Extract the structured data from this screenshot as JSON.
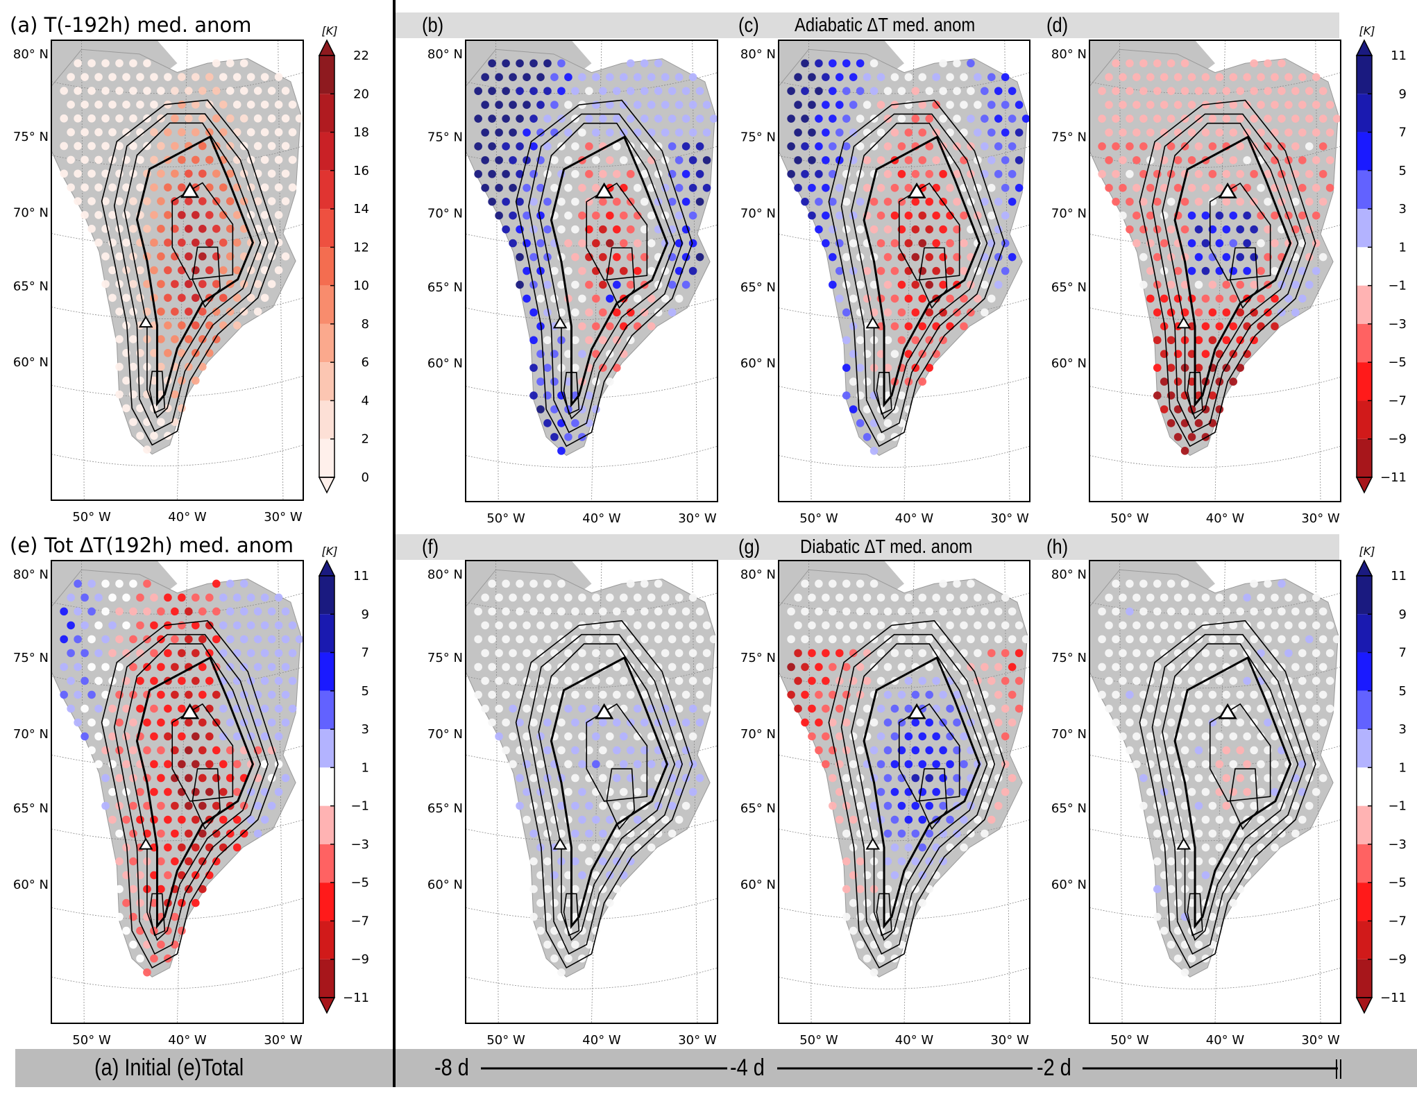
{
  "figure": {
    "row1_header": {
      "panel_b": "(b)",
      "panel_c": "(c)",
      "title": "Adiabatic ΔT med. anom",
      "panel_d": "(d)"
    },
    "row2_header": {
      "panel_f": "(f)",
      "panel_g": "(g)",
      "title": "Diabatic ΔT med. anom",
      "panel_h": "(h)"
    },
    "panel_a_title": "(a)  T(-192h) med. anom",
    "panel_e_title": "(e)  Tot ΔT(192h) med. anom",
    "bottom_left_label": "(a) Initial (e)Total",
    "timeline": {
      "labels": [
        "-8 d",
        "-4 d",
        "-2 d"
      ],
      "end_marker": "||"
    },
    "colors": {
      "land": "#c4c4c4",
      "header_band": "#dcdcdc",
      "bottom_band": "#bbbbbb",
      "marker_fill": "#ffffff"
    }
  },
  "chart_data": [
    {
      "id": "a",
      "type": "scatter",
      "title": "T(-192h) med. anom",
      "panel_label": "(a)",
      "projection": "Greenland polar stereographic",
      "lat_ticks": [
        "80° N",
        "75° N",
        "70° N",
        "65° N",
        "60° N"
      ],
      "lon_ticks": [
        "50° W",
        "40° W",
        "30° W"
      ],
      "colorbar": {
        "unit": "[K]",
        "ticks": [
          "22",
          "20",
          "18",
          "16",
          "14",
          "12",
          "10",
          "8",
          "6",
          "4",
          "2",
          "0"
        ],
        "range": [
          0,
          22
        ],
        "extend": "both",
        "colors": [
          "#fff0eb",
          "#fde0d6",
          "#fcc6b2",
          "#fba98d",
          "#f88c6d",
          "#f46d50",
          "#ee5040",
          "#e03431",
          "#c92126",
          "#b01b20",
          "#8e1a1f"
        ]
      },
      "field": "warm",
      "summit_marker": true,
      "south_marker": true
    },
    {
      "id": "b",
      "type": "scatter",
      "title": "",
      "panel_label": "(b)",
      "lead_time": "-8 d",
      "lat_ticks": [
        "80° N",
        "75° N",
        "70° N",
        "65° N",
        "60° N"
      ],
      "lon_ticks": [
        "50° W",
        "40° W",
        "30° W"
      ],
      "field": "adiabatic_b"
    },
    {
      "id": "c",
      "type": "scatter",
      "title": "Adiabatic ΔT med. anom",
      "panel_label": "(c)",
      "lead_time": "-4 d",
      "lat_ticks": [
        "80° N",
        "75° N",
        "70° N",
        "65° N",
        "60° N"
      ],
      "lon_ticks": [
        "50° W",
        "40° W",
        "30° W"
      ],
      "field": "adiabatic_c"
    },
    {
      "id": "d",
      "type": "scatter",
      "title": "",
      "panel_label": "(d)",
      "lead_time": "-2 d",
      "lat_ticks": [
        "80° N",
        "75° N",
        "70° N",
        "65° N",
        "60° N"
      ],
      "lon_ticks": [
        "50° W",
        "40° W",
        "30° W"
      ],
      "field": "adiabatic_d",
      "colorbar": {
        "unit": "[K]",
        "ticks": [
          "11",
          "9",
          "7",
          "5",
          "3",
          "1",
          "−1",
          "−3",
          "−5",
          "−7",
          "−9",
          "−11"
        ],
        "range": [
          -11,
          11
        ],
        "extend": "both",
        "colors": [
          "#a7161b",
          "#d11a1a",
          "#ff1a1a",
          "#ff6262",
          "#ffb3b3",
          "#ffffff",
          "#b3b3ff",
          "#6262ff",
          "#1a1aff",
          "#1a1ab0",
          "#1a1a80"
        ]
      }
    },
    {
      "id": "e",
      "type": "scatter",
      "title": "Tot ΔT(192h) med. anom",
      "panel_label": "(e)",
      "lat_ticks": [
        "80° N",
        "75° N",
        "70° N",
        "65° N",
        "60° N"
      ],
      "lon_ticks": [
        "50° W",
        "40° W",
        "30° W"
      ],
      "field": "total_e",
      "colorbar": {
        "unit": "[K]",
        "ticks": [
          "11",
          "9",
          "7",
          "5",
          "3",
          "1",
          "−1",
          "−3",
          "−5",
          "−7",
          "−9",
          "−11"
        ],
        "range": [
          -11,
          11
        ],
        "extend": "both",
        "colors": [
          "#a7161b",
          "#d11a1a",
          "#ff1a1a",
          "#ff6262",
          "#ffb3b3",
          "#ffffff",
          "#b3b3ff",
          "#6262ff",
          "#1a1aff",
          "#1a1ab0",
          "#1a1a80"
        ]
      }
    },
    {
      "id": "f",
      "type": "scatter",
      "title": "",
      "panel_label": "(f)",
      "lead_time": "-8 d",
      "lat_ticks": [
        "80° N",
        "75° N",
        "70° N",
        "65° N",
        "60° N"
      ],
      "lon_ticks": [
        "50° W",
        "40° W",
        "30° W"
      ],
      "field": "diabatic_f"
    },
    {
      "id": "g",
      "type": "scatter",
      "title": "Diabatic ΔT med. anom",
      "panel_label": "(g)",
      "lead_time": "-4 d",
      "lat_ticks": [
        "80° N",
        "75° N",
        "70° N",
        "65° N",
        "60° N"
      ],
      "lon_ticks": [
        "50° W",
        "40° W",
        "30° W"
      ],
      "field": "diabatic_g"
    },
    {
      "id": "h",
      "type": "scatter",
      "title": "",
      "panel_label": "(h)",
      "lead_time": "-2 d",
      "lat_ticks": [
        "80° N",
        "75° N",
        "70° N",
        "65° N",
        "60° N"
      ],
      "lon_ticks": [
        "50° W",
        "40° W",
        "30° W"
      ],
      "field": "diabatic_h",
      "colorbar": {
        "unit": "[K]",
        "ticks": [
          "11",
          "9",
          "7",
          "5",
          "3",
          "1",
          "−1",
          "−3",
          "−5",
          "−7",
          "−9",
          "−11"
        ],
        "range": [
          -11,
          11
        ],
        "extend": "both",
        "colors": [
          "#a7161b",
          "#d11a1a",
          "#ff1a1a",
          "#ff6262",
          "#ffb3b3",
          "#ffffff",
          "#b3b3ff",
          "#6262ff",
          "#1a1aff",
          "#1a1ab0",
          "#1a1a80"
        ]
      }
    }
  ]
}
